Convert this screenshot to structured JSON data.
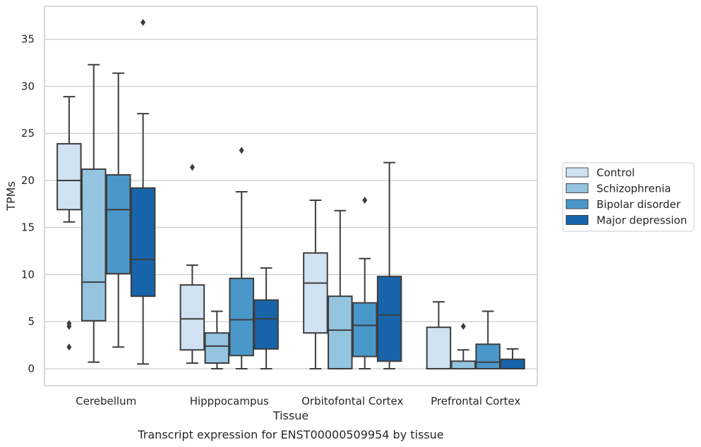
{
  "chart_data": {
    "type": "box",
    "caption": "Transcript expression for ENST00000509954 by tissue",
    "xlabel": "Tissue",
    "ylabel": "TPMs",
    "ylim": [
      -1.8,
      38.5
    ],
    "yticks": [
      0,
      5,
      10,
      15,
      20,
      25,
      30,
      35
    ],
    "grid": "horizontal",
    "legend_position": "right",
    "categories": [
      "Cerebellum",
      "Hipppocampus",
      "Orbitofontal Cortex",
      "Prefrontal Cortex"
    ],
    "series": [
      {
        "name": "Control",
        "color": "#d0e1f2",
        "boxes": [
          {
            "min": 15.6,
            "q1": 16.9,
            "median": 20.0,
            "q3": 23.9,
            "max": 28.9,
            "outliers": [
              4.8,
              4.5,
              2.3
            ]
          },
          {
            "min": 0.6,
            "q1": 2.0,
            "median": 5.3,
            "q3": 8.9,
            "max": 11.0,
            "outliers": [
              21.4
            ]
          },
          {
            "min": 0.0,
            "q1": 3.8,
            "median": 9.1,
            "q3": 12.3,
            "max": 17.9,
            "outliers": []
          },
          {
            "min": 0.0,
            "q1": 0.0,
            "median": 0.0,
            "q3": 4.4,
            "max": 7.1,
            "outliers": []
          }
        ]
      },
      {
        "name": "Schizophrenia",
        "color": "#94c4df",
        "boxes": [
          {
            "min": 0.7,
            "q1": 5.1,
            "median": 9.2,
            "q3": 21.2,
            "max": 32.3,
            "outliers": []
          },
          {
            "min": 0.0,
            "q1": 0.6,
            "median": 2.4,
            "q3": 3.8,
            "max": 6.1,
            "outliers": []
          },
          {
            "min": 0.0,
            "q1": 0.0,
            "median": 4.1,
            "q3": 7.7,
            "max": 16.8,
            "outliers": []
          },
          {
            "min": 0.0,
            "q1": 0.0,
            "median": 0.0,
            "q3": 0.8,
            "max": 2.0,
            "outliers": [
              4.5
            ]
          }
        ]
      },
      {
        "name": "Bipolar disorder",
        "color": "#4a98c9",
        "boxes": [
          {
            "min": 2.3,
            "q1": 10.1,
            "median": 16.9,
            "q3": 20.6,
            "max": 31.4,
            "outliers": []
          },
          {
            "min": 0.0,
            "q1": 1.4,
            "median": 5.2,
            "q3": 9.6,
            "max": 18.8,
            "outliers": [
              23.2
            ]
          },
          {
            "min": 0.0,
            "q1": 1.3,
            "median": 4.6,
            "q3": 7.0,
            "max": 11.7,
            "outliers": [
              17.9
            ]
          },
          {
            "min": 0.0,
            "q1": 0.0,
            "median": 0.7,
            "q3": 2.6,
            "max": 6.1,
            "outliers": []
          }
        ]
      },
      {
        "name": "Major depression",
        "color": "#1764ab",
        "boxes": [
          {
            "min": 0.5,
            "q1": 7.7,
            "median": 11.6,
            "q3": 19.2,
            "max": 27.1,
            "outliers": [
              36.8
            ]
          },
          {
            "min": 0.0,
            "q1": 2.1,
            "median": 5.3,
            "q3": 7.3,
            "max": 10.7,
            "outliers": []
          },
          {
            "min": 0.0,
            "q1": 0.8,
            "median": 5.7,
            "q3": 9.8,
            "max": 21.9,
            "outliers": []
          },
          {
            "min": 0.0,
            "q1": 0.0,
            "median": 0.0,
            "q3": 1.0,
            "max": 2.1,
            "outliers": []
          }
        ]
      }
    ]
  }
}
